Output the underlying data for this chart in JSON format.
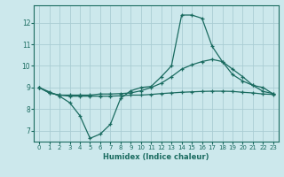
{
  "xlabel": "Humidex (Indice chaleur)",
  "bg_color": "#cce8ec",
  "grid_color": "#aacdd4",
  "line_color": "#1a6b60",
  "xlim": [
    -0.5,
    23.5
  ],
  "ylim": [
    6.5,
    12.8
  ],
  "x": [
    0,
    1,
    2,
    3,
    4,
    5,
    6,
    7,
    8,
    9,
    10,
    11,
    12,
    13,
    14,
    15,
    16,
    17,
    18,
    19,
    20,
    21,
    22,
    23
  ],
  "line1": [
    9.0,
    8.8,
    8.6,
    8.3,
    7.7,
    6.65,
    6.85,
    7.3,
    8.5,
    8.85,
    9.0,
    9.05,
    9.5,
    10.0,
    12.35,
    12.35,
    12.2,
    10.9,
    10.2,
    9.6,
    9.3,
    9.1,
    9.0,
    8.7
  ],
  "line2": [
    9.0,
    8.75,
    8.65,
    8.65,
    8.65,
    8.65,
    8.7,
    8.7,
    8.72,
    8.75,
    8.85,
    9.0,
    9.2,
    9.5,
    9.85,
    10.05,
    10.2,
    10.3,
    10.2,
    9.85,
    9.5,
    9.1,
    8.82,
    8.72
  ],
  "line3": [
    9.0,
    8.75,
    8.65,
    8.6,
    8.6,
    8.6,
    8.6,
    8.6,
    8.62,
    8.65,
    8.65,
    8.68,
    8.72,
    8.75,
    8.78,
    8.8,
    8.82,
    8.83,
    8.83,
    8.82,
    8.78,
    8.75,
    8.7,
    8.68
  ]
}
